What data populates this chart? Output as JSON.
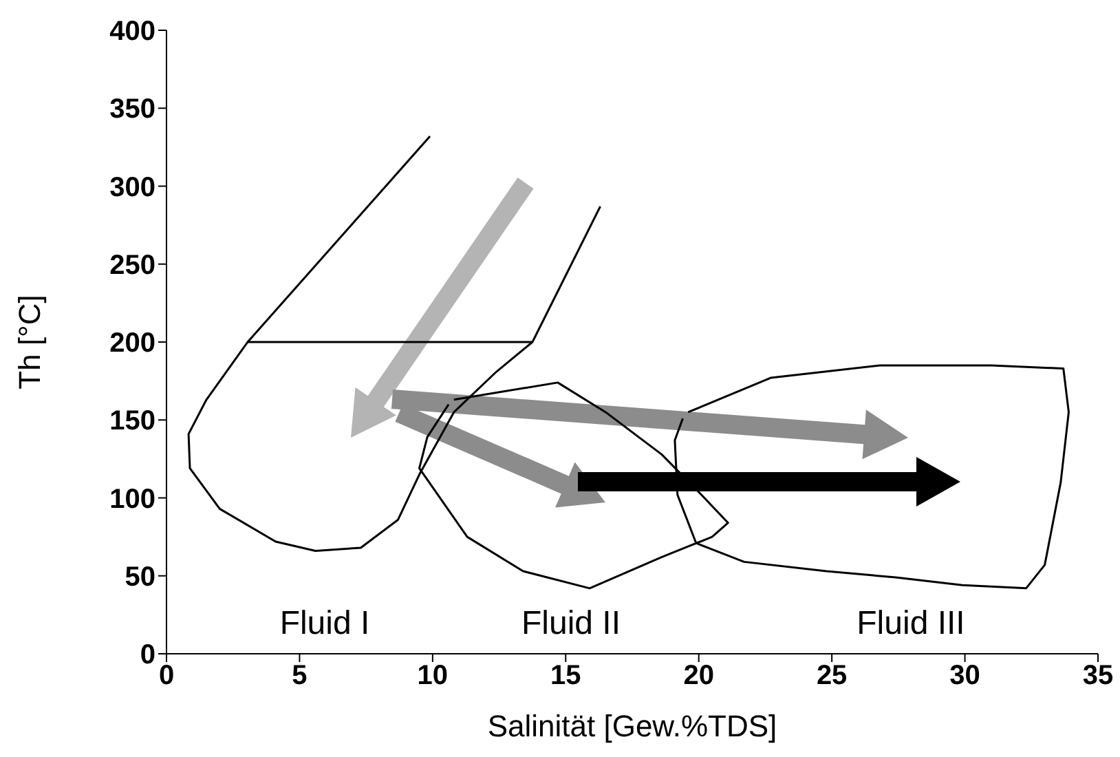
{
  "chart_data": {
    "type": "line",
    "xlabel": "Salinität [Gew.%TDS]",
    "ylabel": "Th [°C]",
    "xlim": [
      0,
      35
    ],
    "ylim": [
      0,
      400
    ],
    "xticks": [
      0,
      5,
      10,
      15,
      20,
      25,
      30,
      35
    ],
    "yticks": [
      0,
      50,
      100,
      150,
      200,
      250,
      300,
      350,
      400
    ],
    "series": [
      {
        "color": "#000000",
        "x": [
          9.9,
          3.05,
          1.5,
          0.83,
          0.88,
          2.0,
          4.1,
          5.6,
          7.3,
          8.7,
          9.5,
          10.8,
          12.4,
          13.75,
          16.3
        ],
        "values": [
          332,
          200,
          163,
          141,
          119,
          93,
          72,
          66,
          68,
          86,
          115,
          155,
          181,
          200,
          287
        ]
      },
      {
        "color": "#000000",
        "x": [
          3.05,
          13.75
        ],
        "values": [
          200,
          200
        ]
      },
      {
        "color": "#000000",
        "x": [
          10.8,
          14.7,
          16.5,
          18.6,
          20.1,
          21.1,
          20.5,
          18.6,
          15.9,
          13.4,
          11.3,
          9.5,
          9.8,
          10.6
        ],
        "values": [
          163,
          174,
          155,
          128,
          102,
          84,
          75,
          62,
          42,
          53,
          75,
          119,
          139,
          160
        ]
      },
      {
        "color": "#000000",
        "x": [
          19.6,
          22.7,
          26.8,
          31.0,
          33.7,
          33.9,
          33.6,
          33.0,
          32.3,
          29.9,
          27.4,
          24.8,
          21.7,
          19.9,
          19.2,
          19.1,
          19.4
        ],
        "values": [
          155,
          177,
          185,
          185,
          183,
          155,
          110,
          57,
          42,
          44,
          49,
          53,
          59,
          71,
          102,
          137,
          151
        ]
      }
    ],
    "annotations": [
      "Fluid I",
      "Fluid II",
      "Fluid III"
    ]
  }
}
